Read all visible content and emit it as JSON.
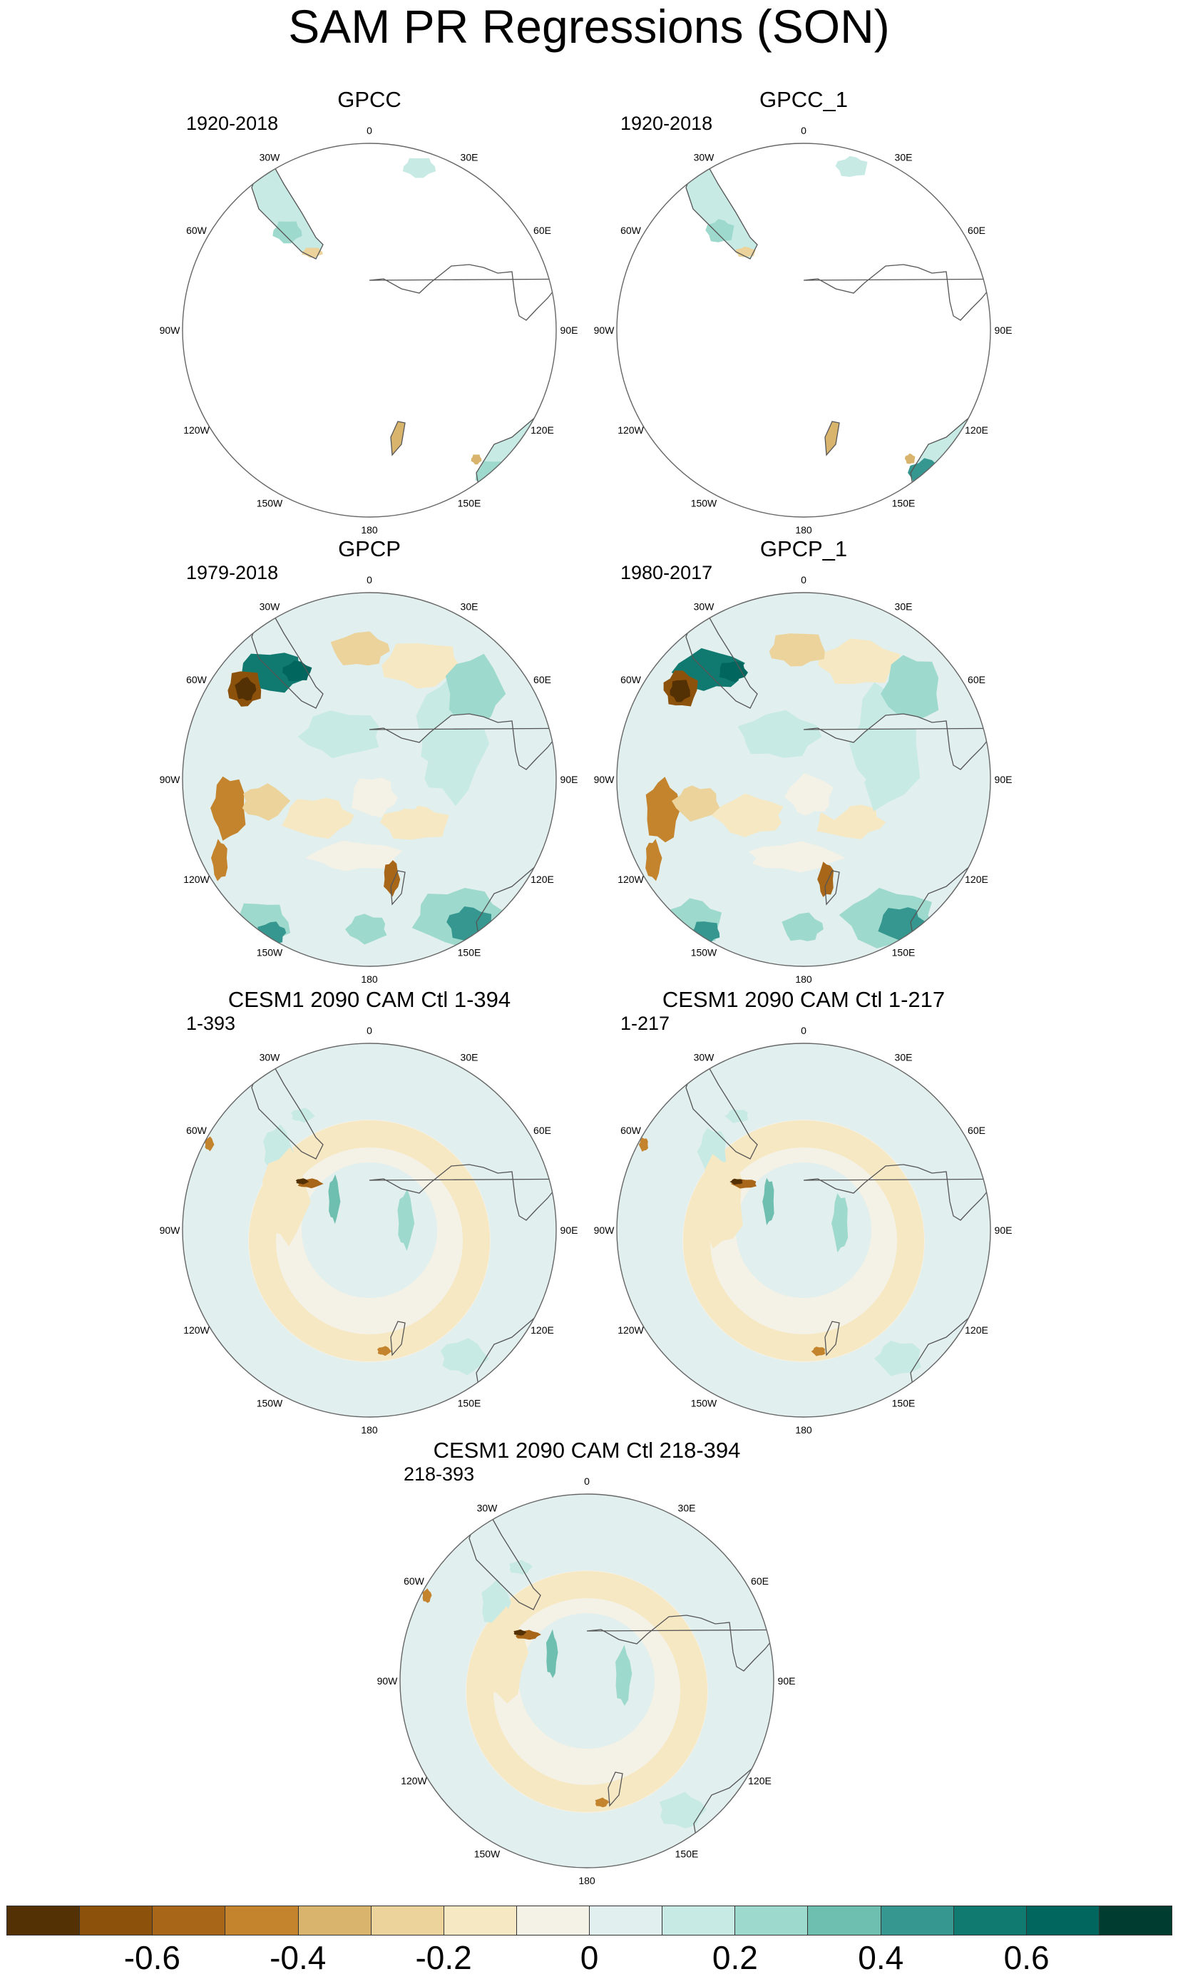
{
  "title": "SAM PR Regressions (SON)",
  "lon_labels": [
    "0",
    "30E",
    "60E",
    "90E",
    "120E",
    "150E",
    "180",
    "150W",
    "120W",
    "90W",
    "60W",
    "30W"
  ],
  "panels": [
    {
      "title": "GPCC",
      "period": "1920-2018",
      "field": "sparse_land"
    },
    {
      "title": "GPCC_1",
      "period": "1920-2018",
      "field": "sparse_land"
    },
    {
      "title": "GPCP",
      "period": "1979-2018",
      "field": "observed_full"
    },
    {
      "title": "GPCP_1",
      "period": "1980-2017",
      "field": "observed_full"
    },
    {
      "title": "CESM1 2090 CAM Ctl 1-394",
      "period": "1-393",
      "field": "model_ring"
    },
    {
      "title": "CESM1 2090 CAM Ctl 1-217",
      "period": "1-217",
      "field": "model_ring"
    },
    {
      "title": "CESM1 2090 CAM Ctl 218-394",
      "period": "218-393",
      "field": "model_ring"
    }
  ],
  "colorbar": {
    "colors": [
      "#543005",
      "#8c510a",
      "#a86618",
      "#c4842e",
      "#d9b46d",
      "#ecd39b",
      "#f6e8c3",
      "#f4f1e6",
      "#e1efee",
      "#c7eae5",
      "#9ed9cd",
      "#6fbfb0",
      "#35978f",
      "#117a70",
      "#01665e",
      "#003c30"
    ],
    "labels": [
      "-0.6",
      "-0.4",
      "-0.2",
      "0",
      "0.2",
      "0.4",
      "0.6"
    ],
    "label_values": [
      -0.6,
      -0.4,
      -0.2,
      0,
      0.2,
      0.4,
      0.6
    ],
    "min": -0.8,
    "max": 0.8
  }
}
